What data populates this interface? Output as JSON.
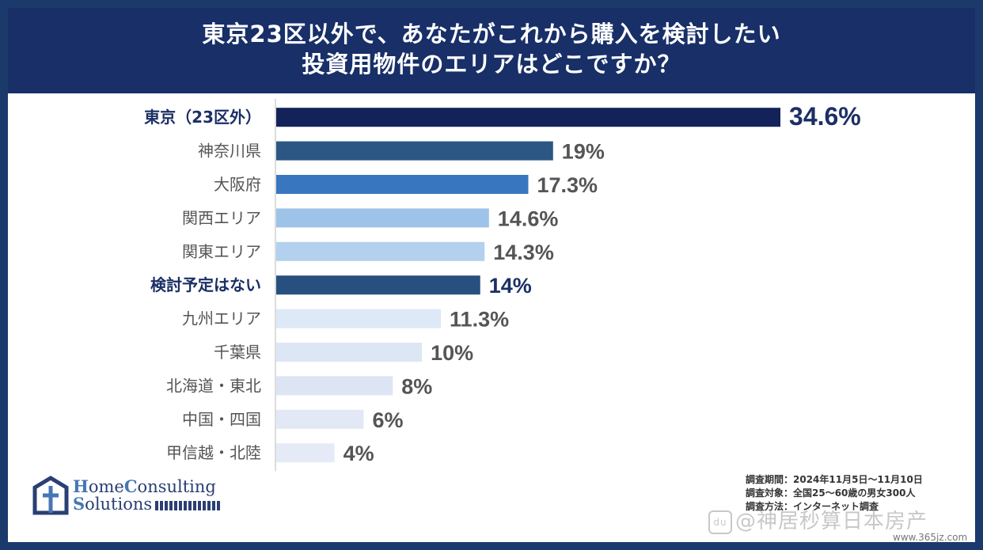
{
  "header": {
    "title_line1": "東京23区以外で、あなたがこれから購入を検討したい",
    "title_line2": "投資用物件のエリアはどこですか？"
  },
  "chart_data": {
    "type": "bar",
    "orientation": "horizontal",
    "categories": [
      "東京（23区外）",
      "神奈川県",
      "大阪府",
      "関西エリア",
      "関東エリア",
      "検討予定はない",
      "九州エリア",
      "千葉県",
      "北海道・東北",
      "中国・四国",
      "甲信越・北陸"
    ],
    "values": [
      34.6,
      19,
      17.3,
      14.6,
      14.3,
      14,
      11.3,
      10,
      8,
      6,
      4
    ],
    "value_labels": [
      "34.6%",
      "19%",
      "17.3%",
      "14.6%",
      "14.3%",
      "14%",
      "11.3%",
      "10%",
      "8%",
      "6%",
      "4%"
    ],
    "bar_colors": [
      "#14225a",
      "#2c5784",
      "#3877c0",
      "#9ec3e8",
      "#b3d1ee",
      "#27507f",
      "#dde9f7",
      "#dde6f5",
      "#dde4f3",
      "#e2e8f5",
      "#e4ebf6"
    ],
    "highlight_categories": [
      "東京（23区外）",
      "検討予定はない"
    ],
    "xlim": [
      0,
      36.5
    ],
    "title": "",
    "xlabel": "",
    "ylabel": "",
    "grid": false,
    "legend": "none"
  },
  "colors": {
    "header_bg": "#182f68",
    "highlight_text": "#1b2f66",
    "normal_label_text": "#555555",
    "value_text": "#555555",
    "axis_line": "#d0d0d0"
  },
  "logo": {
    "line1_cap": "H",
    "line1_rest": "ome",
    "line1_cap2": "C",
    "line1_rest2": "onsulting",
    "line2_cap": "S",
    "line2_rest": "olutions"
  },
  "notes": [
    "調査期間：2024年11月5日〜11月10日",
    "調査対象：全国25〜60歳の男女300人",
    "調査方法：インターネット調査"
  ],
  "watermark": {
    "badge": "du",
    "text": "@神居秒算日本房产",
    "url": "www.365jz.com"
  }
}
